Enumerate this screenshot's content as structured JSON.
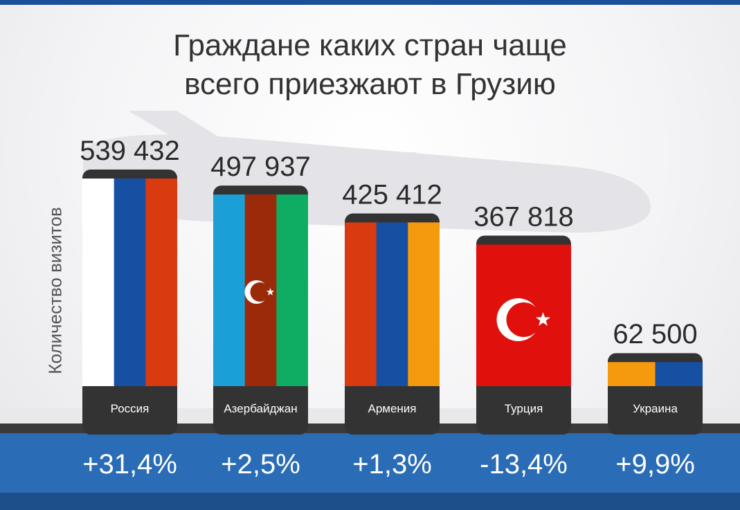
{
  "chart_data": {
    "type": "bar",
    "title": "Граждане каких стран чаще всего приезжают в Грузию",
    "title_lines": [
      "Граждане каких стран чаще",
      "всего приезжают в Грузию"
    ],
    "ylabel": "Количество визитов",
    "xlabel": "",
    "ylim": [
      0,
      560000
    ],
    "grid": false,
    "legend": "none",
    "categories": [
      "Россия",
      "Азербайджан",
      "Армения",
      "Турция",
      "Украина"
    ],
    "values": [
      539432,
      497937,
      425412,
      367818,
      62500
    ],
    "value_labels": [
      "539 432",
      "497 937",
      "425 412",
      "367 818",
      "62 500"
    ],
    "change_labels": [
      "+31,4%",
      "+2,5%",
      "+1,3%",
      "-13,4%",
      "+9,9%"
    ],
    "bar_fills": [
      {
        "kind": "vstripes",
        "colors": [
          "#ffffff",
          "#1750a3",
          "#d93a0f"
        ]
      },
      {
        "kind": "vstripes",
        "colors": [
          "#1aa0d6",
          "#9a2a0a",
          "#0fac64"
        ],
        "emblem": "crescent-star"
      },
      {
        "kind": "vstripes",
        "colors": [
          "#d93a0f",
          "#1750a3",
          "#f59a0c"
        ]
      },
      {
        "kind": "solid",
        "colors": [
          "#e0100d"
        ],
        "emblem": "crescent-star-large"
      },
      {
        "kind": "vstripes",
        "colors": [
          "#f59a0c",
          "#1750a3"
        ]
      }
    ]
  },
  "colors": {
    "bar_cap": "#333333",
    "band": "#2a6cb5",
    "band_dark": "#1d4f8a",
    "baseline": "#3a3a3a"
  },
  "icons": [
    "plane-silhouette-icon",
    "crescent-star-icon"
  ]
}
